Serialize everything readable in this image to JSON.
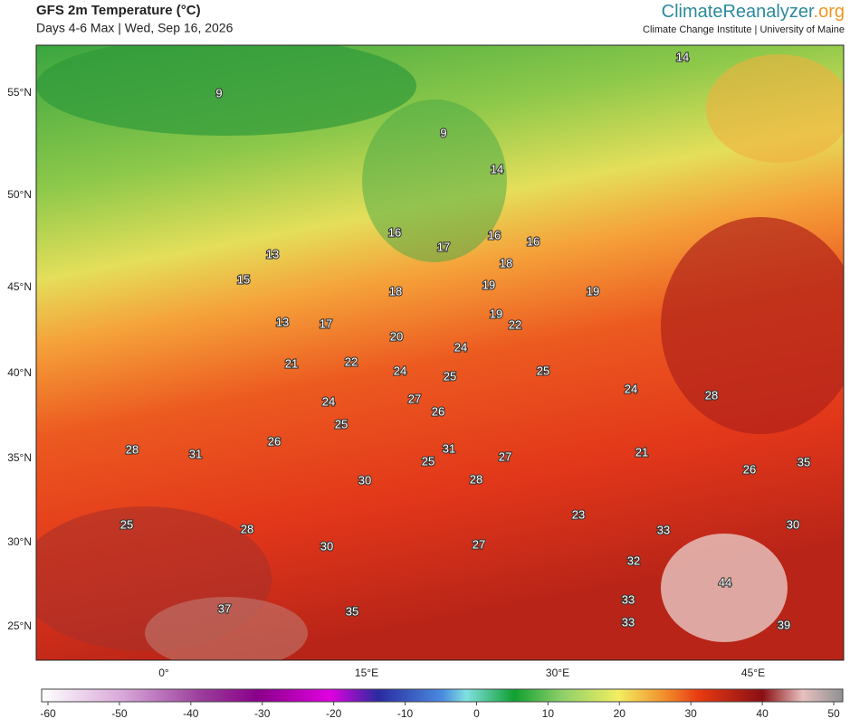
{
  "header": {
    "title": "GFS 2m Temperature (°C)",
    "subtitle": "Days 4-6 Max | Wed, Sep 16, 2026",
    "brand_name": "ClimateReanalyzer",
    "brand_domain": ".org",
    "affiliation": "Climate Change Institute | University of Maine"
  },
  "map": {
    "lat_labels": [
      "55°N",
      "50°N",
      "45°N",
      "40°N",
      "35°N",
      "30°N",
      "25°N"
    ],
    "lon_labels": [
      "0°",
      "15°E",
      "30°E",
      "45°E"
    ],
    "temperature_labels": [
      9,
      9,
      14,
      14,
      16,
      17,
      16,
      16,
      13,
      18,
      15,
      19,
      19,
      18,
      13,
      17,
      19,
      22,
      20,
      24,
      21,
      22,
      24,
      25,
      25,
      24,
      28,
      27,
      24,
      26,
      25,
      26,
      28,
      31,
      31,
      27,
      21,
      25,
      26,
      35,
      30,
      28,
      23,
      25,
      28,
      33,
      30,
      30,
      27,
      32,
      44,
      33,
      37,
      35,
      33,
      39
    ]
  },
  "colorbar": {
    "ticks": [
      -60,
      -50,
      -40,
      -30,
      -20,
      -10,
      0,
      10,
      20,
      30,
      40,
      50
    ]
  }
}
